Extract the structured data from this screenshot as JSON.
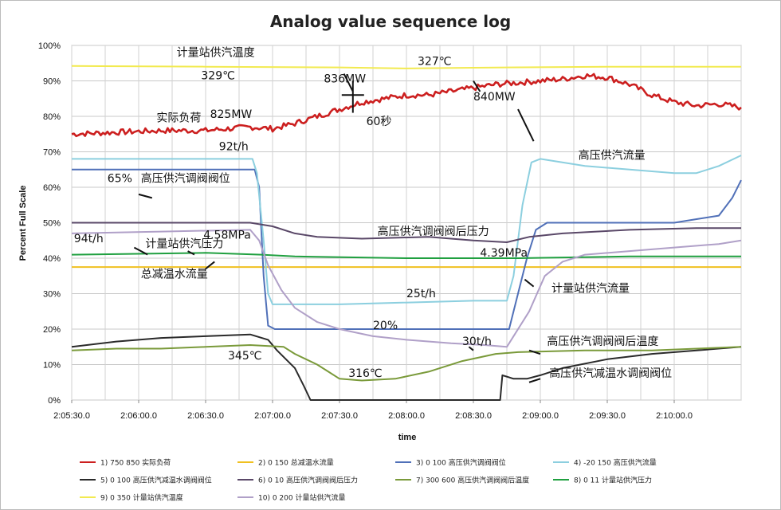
{
  "chart_data": {
    "type": "line",
    "title": "Analog value sequence log",
    "xlabel": "time",
    "ylabel": "Percent Full Scale",
    "x_ticks": [
      "2:05:30.0",
      "2:06:00.0",
      "2:06:30.0",
      "2:07:00.0",
      "2:07:30.0",
      "2:08:00.0",
      "2:08:30.0",
      "2:09:00.0",
      "2:09:30.0",
      "2:10:00.0"
    ],
    "x_range_seconds": [
      0,
      300
    ],
    "y_ticks": [
      "0%",
      "10%",
      "20%",
      "30%",
      "40%",
      "50%",
      "60%",
      "70%",
      "80%",
      "90%",
      "100%"
    ],
    "ylim": [
      0,
      100
    ],
    "grid": true,
    "legend_position": "bottom",
    "series": [
      {
        "name": "1)  750 850 实际负荷",
        "color": "#cc1f1f",
        "points": [
          [
            0,
            75
          ],
          [
            20,
            75.5
          ],
          [
            40,
            76
          ],
          [
            60,
            76
          ],
          [
            80,
            77
          ],
          [
            90,
            76.5
          ],
          [
            100,
            78
          ],
          [
            110,
            80
          ],
          [
            120,
            82
          ],
          [
            130,
            84
          ],
          [
            140,
            85
          ],
          [
            150,
            86
          ],
          [
            160,
            86
          ],
          [
            170,
            87
          ],
          [
            180,
            88
          ],
          [
            190,
            89
          ],
          [
            200,
            89.5
          ],
          [
            210,
            90
          ],
          [
            220,
            90.5
          ],
          [
            230,
            91.5
          ],
          [
            240,
            91
          ],
          [
            250,
            89
          ],
          [
            260,
            86
          ],
          [
            270,
            84
          ],
          [
            280,
            83
          ],
          [
            290,
            83.5
          ],
          [
            300,
            82.5
          ]
        ]
      },
      {
        "name": "2)  0 150 总减温水流量",
        "color": "#f0c020",
        "points": [
          [
            0,
            37.5
          ],
          [
            300,
            37.5
          ]
        ]
      },
      {
        "name": "3)  0 100 高压供汽调阀阀位",
        "color": "#5070b8",
        "points": [
          [
            0,
            65
          ],
          [
            82,
            65
          ],
          [
            84,
            60
          ],
          [
            86,
            35
          ],
          [
            88,
            21
          ],
          [
            91,
            20
          ],
          [
            180,
            20
          ],
          [
            196,
            20
          ],
          [
            200,
            30
          ],
          [
            204,
            40
          ],
          [
            208,
            48
          ],
          [
            213,
            50
          ],
          [
            240,
            50
          ],
          [
            270,
            50
          ],
          [
            280,
            51
          ],
          [
            290,
            52
          ],
          [
            296,
            57
          ],
          [
            300,
            62
          ]
        ]
      },
      {
        "name": "4)  -20 150 高压供汽流量",
        "color": "#8ccfdf",
        "points": [
          [
            0,
            68
          ],
          [
            81,
            68
          ],
          [
            83,
            64
          ],
          [
            86,
            45
          ],
          [
            88,
            30
          ],
          [
            90,
            27
          ],
          [
            120,
            27
          ],
          [
            180,
            28
          ],
          [
            195,
            28
          ],
          [
            198,
            35
          ],
          [
            202,
            55
          ],
          [
            206,
            67
          ],
          [
            210,
            68
          ],
          [
            230,
            66
          ],
          [
            250,
            65
          ],
          [
            270,
            64
          ],
          [
            280,
            64
          ],
          [
            290,
            66
          ],
          [
            300,
            69
          ]
        ]
      },
      {
        "name": "5)  0 100 高压供汽减温水调阀阀位",
        "color": "#2a2a2a",
        "points": [
          [
            0,
            15
          ],
          [
            20,
            16.5
          ],
          [
            40,
            17.5
          ],
          [
            60,
            18
          ],
          [
            80,
            18.5
          ],
          [
            88,
            17
          ],
          [
            92,
            14
          ],
          [
            100,
            9
          ],
          [
            104,
            4
          ],
          [
            107,
            0
          ],
          [
            120,
            0
          ],
          [
            192,
            0
          ],
          [
            193,
            7
          ],
          [
            198,
            6
          ],
          [
            204,
            6
          ],
          [
            210,
            7
          ],
          [
            220,
            9
          ],
          [
            240,
            11.5
          ],
          [
            260,
            13
          ],
          [
            280,
            14
          ],
          [
            300,
            15
          ]
        ]
      },
      {
        "name": "6)  0 10 高压供汽调阀阀后压力",
        "color": "#5a4868",
        "points": [
          [
            0,
            50
          ],
          [
            80,
            50
          ],
          [
            90,
            49
          ],
          [
            100,
            47
          ],
          [
            110,
            46
          ],
          [
            130,
            45.5
          ],
          [
            160,
            46
          ],
          [
            180,
            45
          ],
          [
            195,
            44.5
          ],
          [
            205,
            46
          ],
          [
            220,
            47
          ],
          [
            250,
            48
          ],
          [
            280,
            48.5
          ],
          [
            300,
            48.5
          ]
        ]
      },
      {
        "name": "7)  300 600 高压供汽调阀阀后温度",
        "color": "#7a9a3a",
        "points": [
          [
            0,
            14
          ],
          [
            20,
            14.5
          ],
          [
            40,
            14.5
          ],
          [
            60,
            15
          ],
          [
            80,
            15.5
          ],
          [
            95,
            15
          ],
          [
            100,
            13
          ],
          [
            110,
            10
          ],
          [
            115,
            8
          ],
          [
            120,
            6
          ],
          [
            130,
            5.5
          ],
          [
            145,
            6
          ],
          [
            160,
            8
          ],
          [
            175,
            11
          ],
          [
            190,
            13
          ],
          [
            200,
            13.5
          ],
          [
            230,
            14
          ],
          [
            260,
            14
          ],
          [
            300,
            15
          ]
        ]
      },
      {
        "name": "8)  0 11 计量站供汽压力",
        "color": "#20a040",
        "points": [
          [
            0,
            41
          ],
          [
            60,
            41.5
          ],
          [
            85,
            41
          ],
          [
            100,
            40.5
          ],
          [
            150,
            40
          ],
          [
            200,
            40
          ],
          [
            250,
            40.5
          ],
          [
            300,
            40.5
          ]
        ]
      },
      {
        "name": "9)  0 350 计量站供汽温度",
        "color": "#f2ea50",
        "points": [
          [
            0,
            94.2
          ],
          [
            60,
            94
          ],
          [
            120,
            93.8
          ],
          [
            150,
            93.5
          ],
          [
            180,
            93.7
          ],
          [
            240,
            94
          ],
          [
            300,
            94
          ]
        ]
      },
      {
        "name": "10)  0 200 计量站供汽流量",
        "color": "#b0a0c8",
        "points": [
          [
            0,
            47
          ],
          [
            40,
            47.5
          ],
          [
            80,
            48
          ],
          [
            84,
            45
          ],
          [
            88,
            38
          ],
          [
            94,
            31
          ],
          [
            100,
            26
          ],
          [
            110,
            22
          ],
          [
            120,
            20
          ],
          [
            135,
            18
          ],
          [
            150,
            17
          ],
          [
            170,
            16
          ],
          [
            185,
            15.5
          ],
          [
            195,
            15
          ],
          [
            205,
            25
          ],
          [
            212,
            35
          ],
          [
            220,
            39
          ],
          [
            230,
            41
          ],
          [
            250,
            42
          ],
          [
            270,
            43
          ],
          [
            290,
            44
          ],
          [
            300,
            45
          ]
        ]
      }
    ],
    "annotations": [
      {
        "text": "计量站供汽温度",
        "x": 47,
        "y": 97
      },
      {
        "text": "329℃",
        "x": 58,
        "y": 90.5
      },
      {
        "text": "327℃",
        "x": 155,
        "y": 94.5
      },
      {
        "text": "836MW",
        "x": 113,
        "y": 89.5
      },
      {
        "text": "840MW",
        "x": 180,
        "y": 84.5
      },
      {
        "text": "实际负荷",
        "x": 38,
        "y": 78.5
      },
      {
        "text": "825MW",
        "x": 62,
        "y": 79.5
      },
      {
        "text": "60秒",
        "x": 132,
        "y": 77.5
      },
      {
        "text": "92t/h",
        "x": 66,
        "y": 70.5
      },
      {
        "text": "高压供汽流量",
        "x": 227,
        "y": 68
      },
      {
        "text": "65%",
        "x": 16,
        "y": 61.5
      },
      {
        "text": "高压供汽调阀阀位",
        "x": 31,
        "y": 61.5
      },
      {
        "text": "94t/h",
        "x": 1,
        "y": 44.5
      },
      {
        "text": "计量站供汽压力",
        "x": 33,
        "y": 43
      },
      {
        "text": "4.58MPa",
        "x": 59,
        "y": 45.5
      },
      {
        "text": "高压供汽调阀阀后压力",
        "x": 137,
        "y": 46.5
      },
      {
        "text": "4.39MPa",
        "x": 183,
        "y": 40.5
      },
      {
        "text": "总减温水流量",
        "x": 31,
        "y": 34.5
      },
      {
        "text": "计量站供汽流量",
        "x": 215,
        "y": 30.5
      },
      {
        "text": "25t/h",
        "x": 150,
        "y": 29
      },
      {
        "text": "20%",
        "x": 135,
        "y": 20
      },
      {
        "text": "30t/h",
        "x": 175,
        "y": 15.5
      },
      {
        "text": "高压供汽调阀阀后温度",
        "x": 213,
        "y": 15.5
      },
      {
        "text": "345℃",
        "x": 70,
        "y": 11.5
      },
      {
        "text": "316℃",
        "x": 124,
        "y": 6.5
      },
      {
        "text": "高压供汽减温水调阀阀位",
        "x": 214,
        "y": 6.5
      }
    ]
  }
}
